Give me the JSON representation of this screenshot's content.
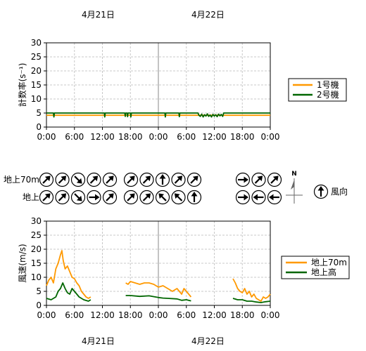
{
  "dates": {
    "top_left": "4月21日",
    "top_right": "4月22日",
    "bottom_left": "4月21日",
    "bottom_right": "4月22日"
  },
  "compass": {
    "north": "N"
  },
  "wind_direction_legend": {
    "label": "風向"
  },
  "arrow_rows": {
    "upper": "地上70m",
    "lower": "地上"
  },
  "wind_arrows": {
    "upper": [
      {
        "group": 0,
        "deg": [
          45,
          45,
          135,
          45,
          45
        ]
      },
      {
        "group": 1,
        "deg": [
          45,
          45,
          0,
          45,
          45
        ]
      },
      {
        "group": 2,
        "deg": [
          90,
          45,
          45
        ]
      }
    ],
    "lower": [
      {
        "group": 0,
        "deg": [
          45,
          45,
          135,
          90,
          45
        ]
      },
      {
        "group": 1,
        "deg": [
          45,
          45,
          315,
          315,
          0
        ]
      },
      {
        "group": 2,
        "deg": [
          90,
          270,
          270
        ]
      }
    ]
  },
  "chart_data": [
    {
      "type": "line",
      "ylabel": "計数率(s⁻¹)",
      "ylim": [
        0,
        30
      ],
      "yticks": [
        0,
        5,
        10,
        15,
        20,
        25,
        30
      ],
      "xlim": [
        0,
        48
      ],
      "xticks": [
        "0:00",
        "6:00",
        "12:00",
        "18:00",
        "0:00",
        "6:00",
        "12:00",
        "18:00",
        "0:00"
      ],
      "grid": true,
      "legend_position": "right",
      "colors": {
        "1号機": "#ff9900",
        "2号機": "#006600"
      },
      "series": [
        {
          "name": "1号機",
          "x": [
            0,
            48
          ],
          "values": [
            4.2,
            4.2
          ]
        },
        {
          "name": "2号機",
          "x": [
            0,
            1.5,
            1.6,
            1.7,
            12.4,
            12.5,
            12.6,
            16.8,
            16.9,
            17.0,
            17.3,
            17.4,
            17.5,
            18.0,
            18.1,
            18.2,
            25.4,
            25.5,
            25.6,
            28.4,
            28.5,
            28.6,
            32.5,
            32.7,
            33.0,
            33.3,
            33.6,
            33.9,
            34.2,
            34.5,
            34.8,
            35.1,
            35.4,
            35.7,
            36.0,
            36.3,
            36.6,
            36.9,
            37.2,
            37.5,
            37.8,
            38.0,
            48
          ],
          "values": [
            5,
            5,
            3.6,
            5,
            5,
            3.6,
            5,
            5,
            3.8,
            5,
            5,
            3.7,
            5,
            5,
            3.6,
            5,
            5,
            3.6,
            5,
            5,
            3.7,
            5,
            5,
            4.2,
            3.8,
            4.6,
            3.6,
            4.4,
            3.9,
            4.7,
            3.8,
            4.3,
            3.6,
            4.5,
            3.9,
            4.4,
            3.7,
            4.6,
            4.0,
            4.5,
            3.8,
            5,
            5
          ]
        }
      ]
    },
    {
      "type": "line",
      "ylabel": "風速(m/s)",
      "ylim": [
        0,
        30
      ],
      "yticks": [
        0,
        5,
        10,
        15,
        20,
        25,
        30
      ],
      "xlim": [
        0,
        48
      ],
      "xticks": [
        "0:00",
        "6:00",
        "12:00",
        "18:00",
        "0:00",
        "6:00",
        "12:00",
        "18:00",
        "0:00"
      ],
      "grid": true,
      "legend_position": "right",
      "colors": {
        "地上70m": "#ff9900",
        "地上高": "#006600"
      },
      "series": [
        {
          "name": "地上70m",
          "segments": [
            {
              "x": [
                0,
                0.5,
                1,
                1.5,
                2,
                2.5,
                3,
                3.3,
                3.6,
                4,
                4.5,
                5,
                5.5,
                6,
                6.5,
                7,
                7.5,
                8,
                8.5,
                9,
                9.5
              ],
              "y": [
                7,
                9,
                10,
                8,
                13,
                15,
                18,
                19.5,
                16,
                13,
                14,
                12,
                10,
                9.5,
                8,
                7,
                5,
                4,
                3,
                2.5,
                3
              ]
            },
            {
              "x": [
                17,
                17.5,
                18,
                19,
                20,
                21,
                22,
                23,
                24,
                25,
                26,
                27,
                28,
                29,
                29.5,
                30,
                30.5,
                31
              ],
              "y": [
                8,
                7.5,
                8.5,
                8,
                7.5,
                8,
                8,
                7.5,
                6.5,
                7,
                6,
                5,
                6,
                4,
                6,
                5,
                4,
                3
              ]
            },
            {
              "x": [
                40,
                40.5,
                41,
                41.5,
                42,
                42.5,
                43,
                43.5,
                44,
                44.5,
                45,
                45.5,
                46,
                46.5,
                47,
                47.5,
                48
              ],
              "y": [
                9.5,
                8,
                6,
                5,
                4.5,
                6,
                4,
                5,
                3,
                4,
                2.5,
                2,
                1.5,
                3,
                2.5,
                3,
                4
              ]
            }
          ]
        },
        {
          "name": "地上高",
          "segments": [
            {
              "x": [
                0,
                1,
                2,
                2.5,
                3,
                3.5,
                4,
                4.5,
                5,
                5.5,
                6,
                7,
                8,
                9,
                9.5
              ],
              "y": [
                2.5,
                2,
                3,
                5,
                6,
                8,
                6,
                4.5,
                4,
                6,
                5,
                3,
                2,
                1.5,
                2
              ]
            },
            {
              "x": [
                17,
                18,
                20,
                22,
                24,
                25,
                26,
                28,
                29,
                30,
                31
              ],
              "y": [
                3.5,
                3.5,
                3.2,
                3.4,
                2.8,
                2.6,
                2.5,
                2.3,
                1.8,
                2,
                1.6
              ]
            },
            {
              "x": [
                40,
                41,
                42,
                43,
                44,
                45,
                46,
                47,
                48
              ],
              "y": [
                2.5,
                2,
                2,
                1.5,
                1.5,
                1.2,
                1,
                1.3,
                1.5
              ]
            }
          ]
        }
      ]
    }
  ]
}
